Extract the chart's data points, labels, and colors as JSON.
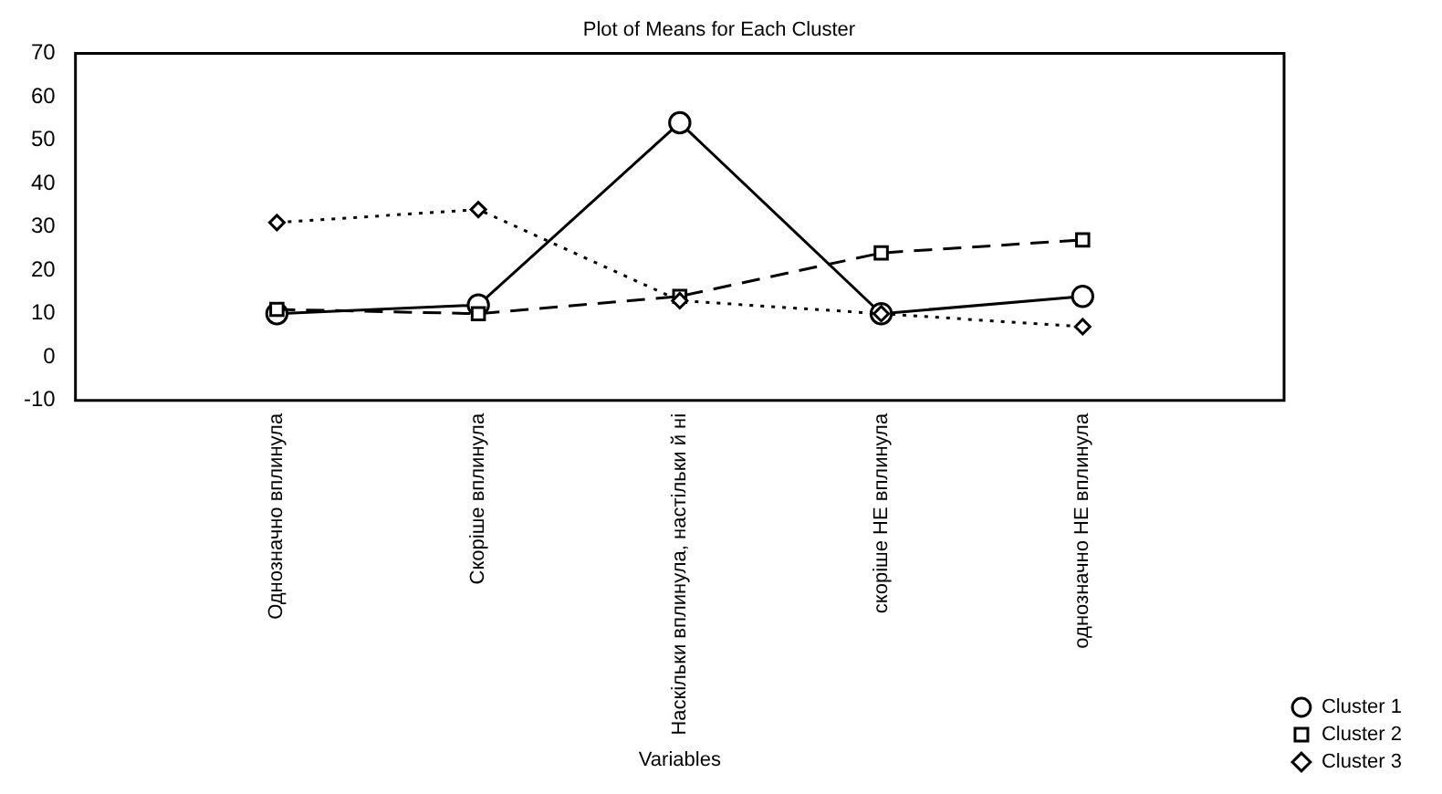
{
  "chart_data": {
    "type": "line",
    "title": "Plot of Means for Each Cluster",
    "xlabel": "Variables",
    "categories": [
      "Однозначно вплинула",
      "Скоріше вплинула",
      "Наскільки вплинула, настільки й ні",
      "скоріше НЕ вплинула",
      "однозначно НЕ вплинула"
    ],
    "series": [
      {
        "name": "Cluster 1",
        "color": "#000000",
        "marker": "circle",
        "line_style": "solid",
        "values": [
          10,
          12,
          54,
          10,
          14
        ]
      },
      {
        "name": "Cluster 2",
        "color": "#000000",
        "marker": "square",
        "line_style": "dashed",
        "values": [
          11,
          10,
          14,
          24,
          27
        ]
      },
      {
        "name": "Cluster 3",
        "color": "#000000",
        "marker": "diamond",
        "line_style": "dotted",
        "values": [
          31,
          34,
          13,
          10,
          7
        ]
      }
    ],
    "ylim": [
      -10,
      70
    ],
    "yticks": [
      -10,
      0,
      10,
      20,
      30,
      40,
      50,
      60,
      70
    ],
    "grid": false,
    "legend": "bottom right"
  }
}
